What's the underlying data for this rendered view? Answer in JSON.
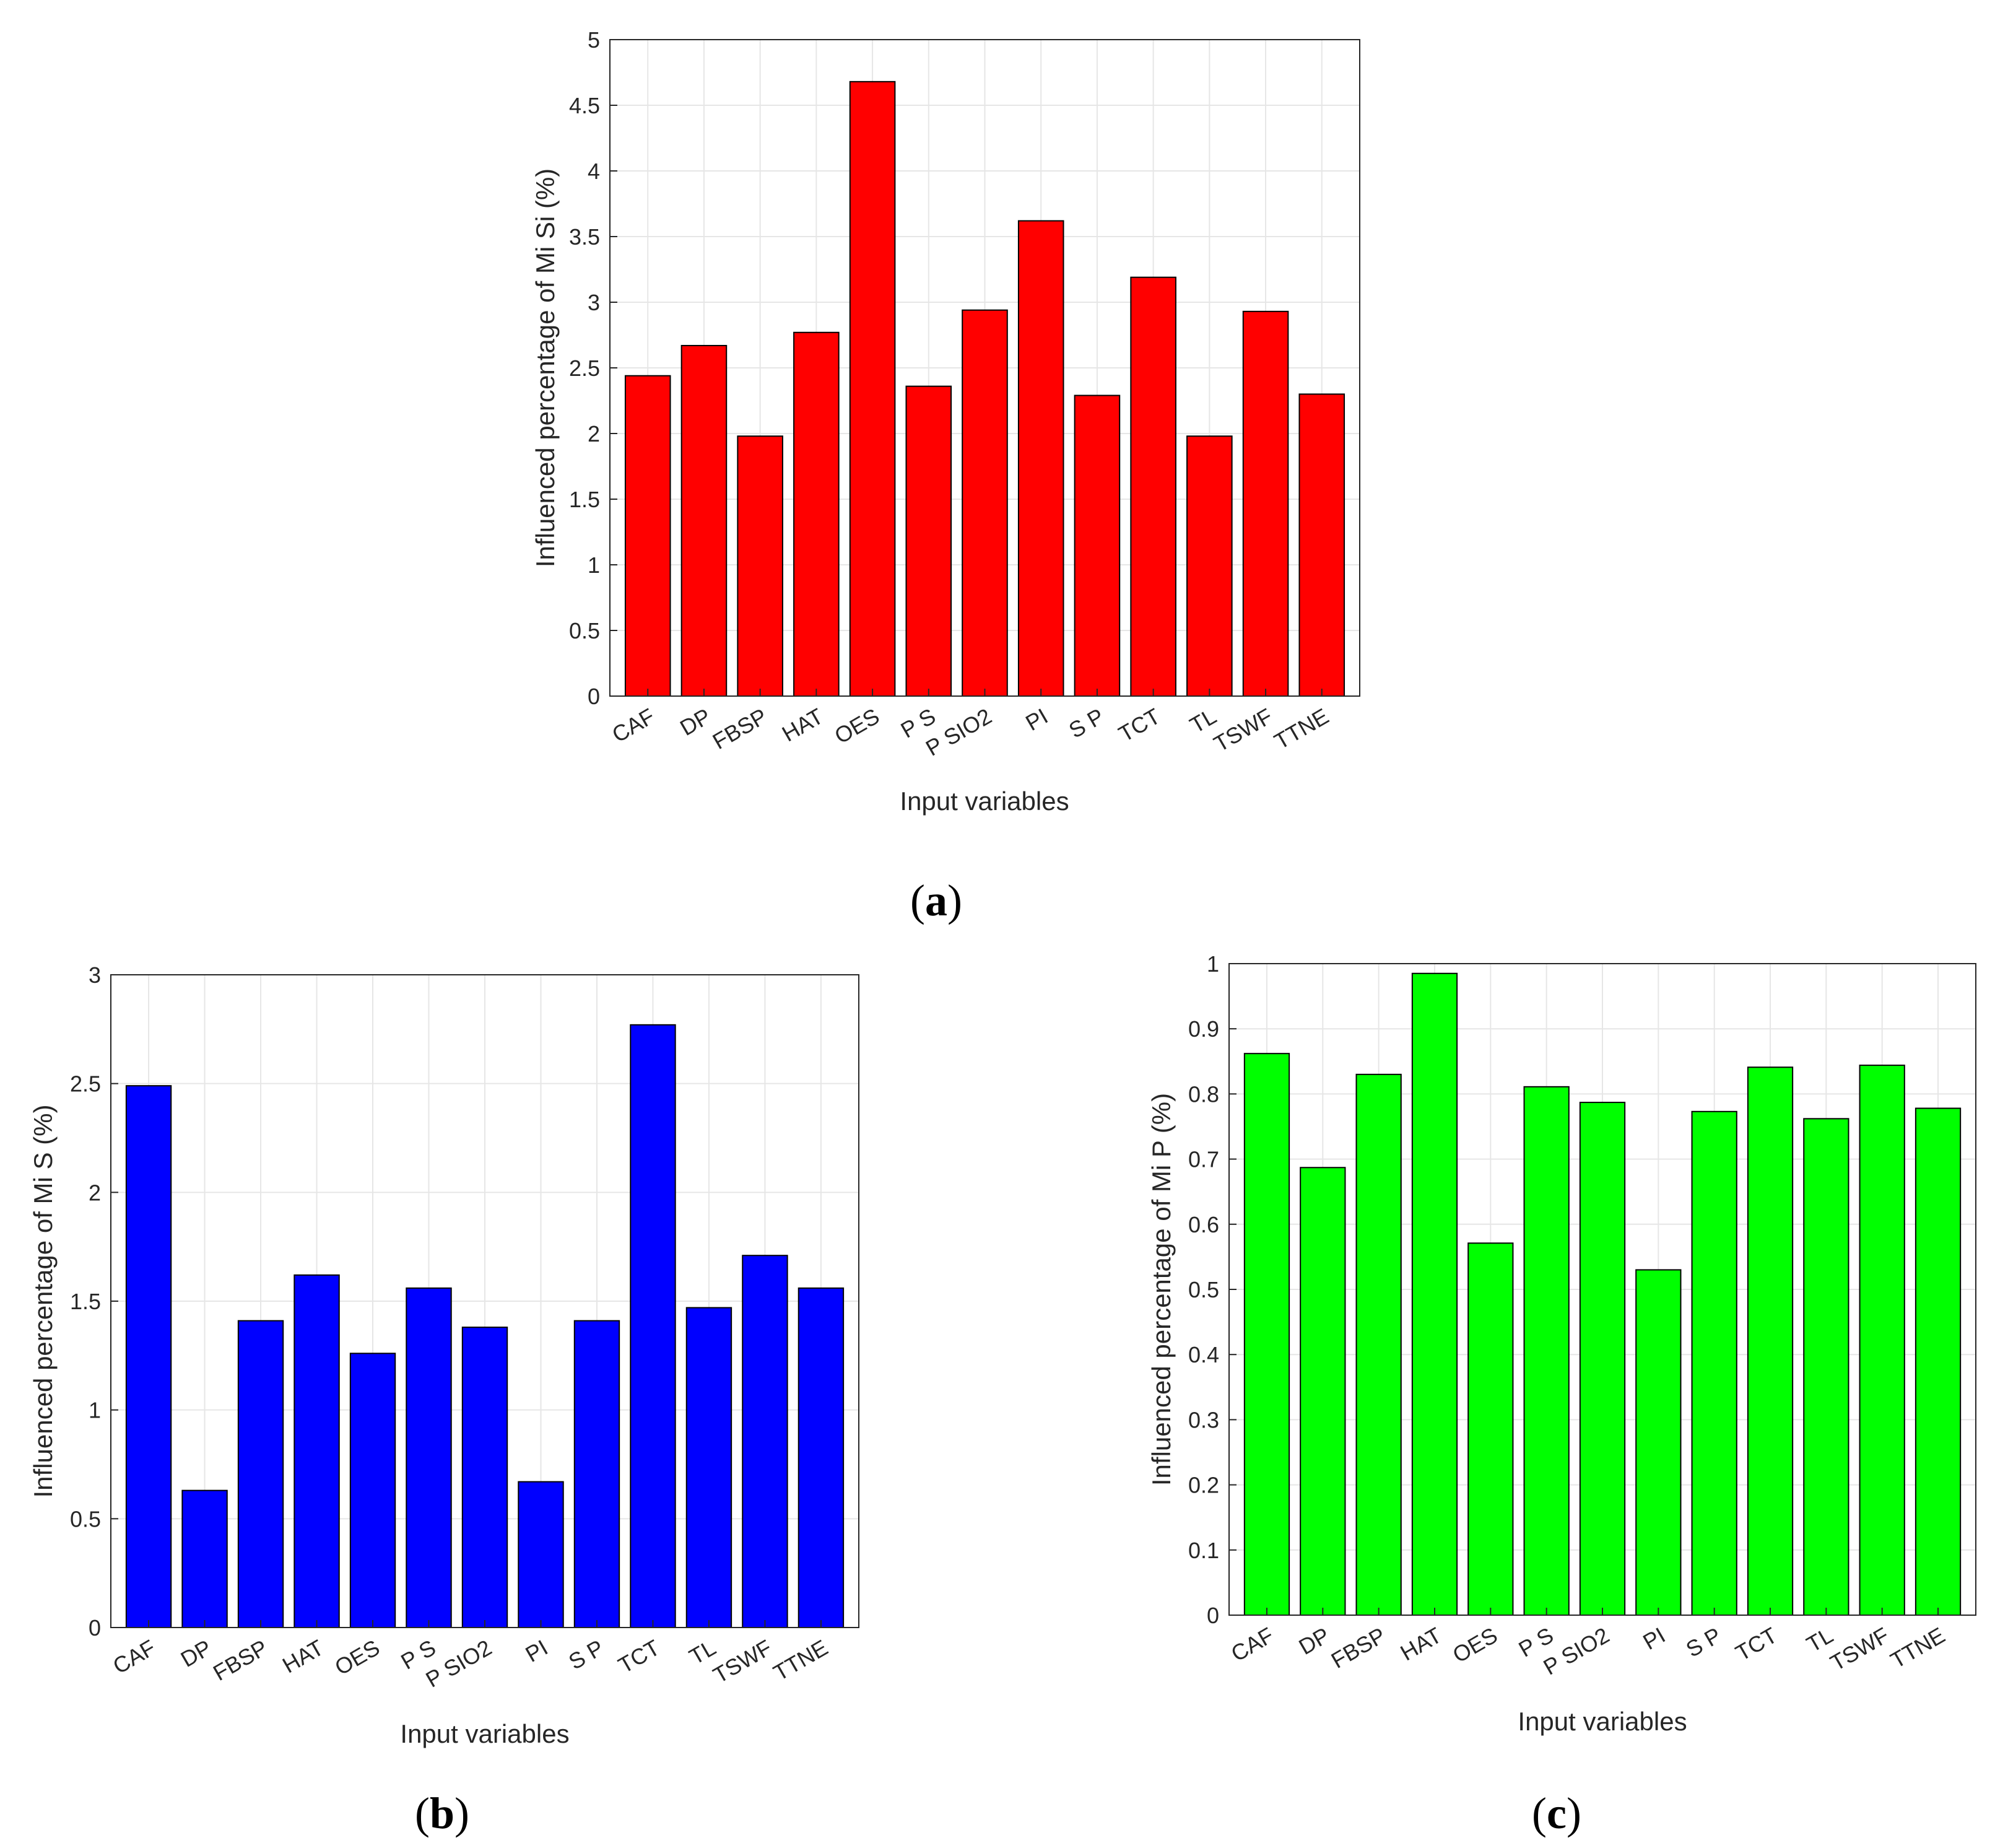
{
  "colors": {
    "grid": "#e6e6e6",
    "axis": "#262626",
    "bar_edge": "#000000"
  },
  "chart_data": [
    {
      "id": "a",
      "type": "bar",
      "caption": "a",
      "xlabel": "Input variables",
      "ylabel": "Influenced percentage of Mi Si (%)",
      "categories": [
        "CAF",
        "DP",
        "FBSP",
        "HAT",
        "OES",
        "P S",
        "P SIO2",
        "PI",
        "S P",
        "TCT",
        "TL",
        "TSWF",
        "TTNE"
      ],
      "values": [
        2.44,
        2.67,
        1.98,
        2.77,
        4.68,
        2.36,
        2.94,
        3.62,
        2.29,
        3.19,
        1.98,
        2.93,
        2.3
      ],
      "ylim": [
        0,
        5
      ],
      "yticks": [
        "0",
        "0.5",
        "1",
        "1.5",
        "2",
        "2.5",
        "3",
        "3.5",
        "4",
        "4.5",
        "5"
      ],
      "color": "#ff0000",
      "grid": true
    },
    {
      "id": "b",
      "type": "bar",
      "caption": "b",
      "xlabel": "Input variables",
      "ylabel": "Influenced percentage of Mi S (%)",
      "categories": [
        "CAF",
        "DP",
        "FBSP",
        "HAT",
        "OES",
        "P S",
        "P SIO2",
        "PI",
        "S P",
        "TCT",
        "TL",
        "TSWF",
        "TTNE"
      ],
      "values": [
        2.49,
        0.63,
        1.41,
        1.62,
        1.26,
        1.56,
        1.38,
        0.67,
        1.41,
        2.77,
        1.47,
        1.71,
        1.56
      ],
      "ylim": [
        0,
        3
      ],
      "yticks": [
        "0",
        "0.5",
        "1",
        "1.5",
        "2",
        "2.5",
        "3"
      ],
      "color": "#0000ff",
      "grid": true
    },
    {
      "id": "c",
      "type": "bar",
      "caption": "c",
      "xlabel": "Input variables",
      "ylabel": "Influenced percentage of Mi P (%)",
      "categories": [
        "CAF",
        "DP",
        "FBSP",
        "HAT",
        "OES",
        "P S",
        "P SIO2",
        "PI",
        "S P",
        "TCT",
        "TL",
        "TSWF",
        "TTNE"
      ],
      "values": [
        0.862,
        0.687,
        0.83,
        0.985,
        0.571,
        0.811,
        0.787,
        0.53,
        0.773,
        0.841,
        0.762,
        0.844,
        0.778
      ],
      "ylim": [
        0,
        1
      ],
      "yticks": [
        "0",
        "0.1",
        "0.2",
        "0.3",
        "0.4",
        "0.5",
        "0.6",
        "0.7",
        "0.8",
        "0.9",
        "1"
      ],
      "color": "#00ff00",
      "grid": true
    }
  ]
}
